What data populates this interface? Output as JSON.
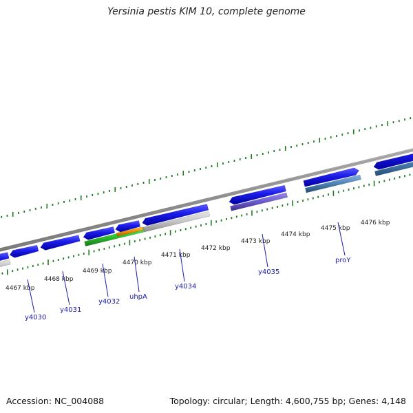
{
  "title": "Yersinia pestis KIM 10, complete genome",
  "footer": {
    "accession": "Accession: NC_004088",
    "summary": "Topology: circular; Length: 4,600,755 bp; Genes: 4,148"
  },
  "colors": {
    "backbone": "#8a8a8a",
    "tick": "#1f7a1f",
    "gene_forward": "#1414e6",
    "label": "#1a1aa8"
  },
  "scale_labels": [
    "4467 kbp",
    "4468 kbp",
    "4469 kbp",
    "4470 kbp",
    "4471 kbp",
    "4472 kbp",
    "4473 kbp",
    "4474 kbp",
    "4475 kbp",
    "4476 kbp"
  ],
  "genes": [
    {
      "label": "y4030"
    },
    {
      "label": "y4031"
    },
    {
      "label": "y4032"
    },
    {
      "label": "uhpA"
    },
    {
      "label": "y4034"
    },
    {
      "label": "y4035"
    },
    {
      "label": "proY"
    }
  ]
}
